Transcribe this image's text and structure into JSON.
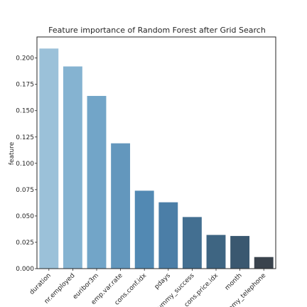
{
  "chart_data": {
    "type": "bar",
    "title": "Feature importance of Random Forest after Grid Search",
    "xlabel": "",
    "ylabel": "feature",
    "ylim": [
      0,
      0.22
    ],
    "yticks": [
      "0.000",
      "0.025",
      "0.050",
      "0.075",
      "0.100",
      "0.125",
      "0.150",
      "0.175",
      "0.200"
    ],
    "grid": false,
    "categories": [
      "duration",
      "nr.employed",
      "euribor3m",
      "emp.var.rate",
      "cons.conf.idx",
      "pdays",
      "dummy_success",
      "cons.price.idx",
      "month",
      "dummy_telephone"
    ],
    "values": [
      0.209,
      0.192,
      0.164,
      0.119,
      0.074,
      0.063,
      0.049,
      0.032,
      0.031,
      0.011
    ],
    "colors": [
      "#9bc1d9",
      "#85b3d1",
      "#72a5c8",
      "#6397bd",
      "#5289b3",
      "#4b7ea7",
      "#436f91",
      "#3e6582",
      "#3a5870",
      "#3a434d"
    ]
  }
}
